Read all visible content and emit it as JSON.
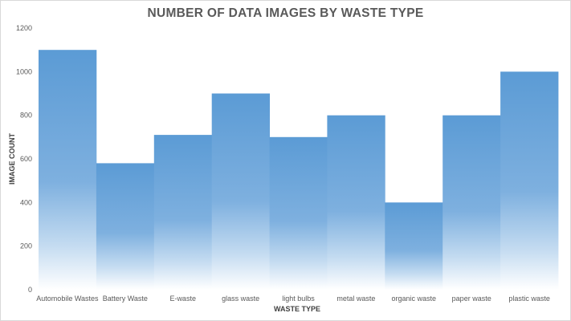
{
  "chart_data": {
    "type": "bar",
    "title": "NUMBER OF DATA IMAGES BY WASTE TYPE",
    "xlabel": "WASTE TYPE",
    "ylabel": "IMAGE COUNT",
    "categories": [
      "Automobile Wastes",
      "Battery Waste",
      "E-waste",
      "glass waste",
      "light bulbs",
      "metal waste",
      "organic waste",
      "paper waste",
      "plastic waste"
    ],
    "values": [
      1100,
      580,
      710,
      900,
      700,
      800,
      400,
      800,
      1000
    ],
    "ylim": [
      0,
      1200
    ],
    "yticks": [
      0,
      200,
      400,
      600,
      800,
      1000,
      1200
    ],
    "grid": false,
    "legend": "none",
    "colors": {
      "bar_top": "#5b9bd5",
      "bar_mid": "#7eb0df",
      "bar_bottom": "#ffffff",
      "text": "#595959"
    }
  }
}
